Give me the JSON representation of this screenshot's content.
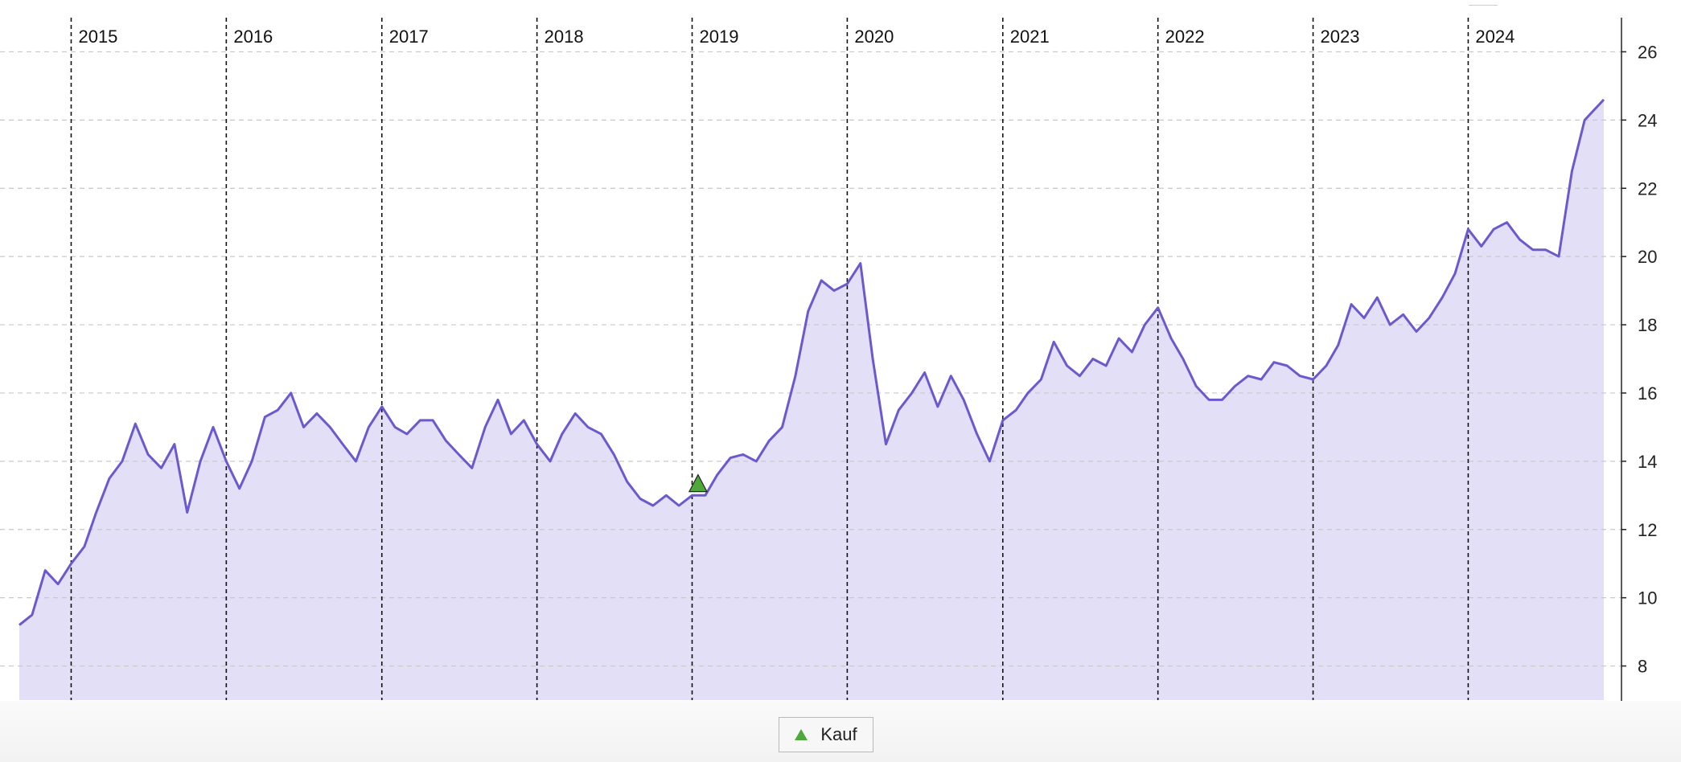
{
  "chart_data": {
    "type": "area",
    "title": "",
    "xlabel": "",
    "ylabel": "",
    "x_range": [
      "2014-09-01",
      "2024-11-15"
    ],
    "ylim": [
      7,
      27
    ],
    "y_ticks": [
      8,
      10,
      12,
      14,
      16,
      18,
      20,
      22,
      24,
      26
    ],
    "y_axis_side": "right",
    "grid": {
      "horizontal": "dashed",
      "vertical_year_markers": "dashed"
    },
    "year_markers": [
      {
        "date": "2015-01-01",
        "label": "2015"
      },
      {
        "date": "2016-01-01",
        "label": "2016"
      },
      {
        "date": "2017-01-01",
        "label": "2017"
      },
      {
        "date": "2018-01-01",
        "label": "2018"
      },
      {
        "date": "2019-01-01",
        "label": "2019"
      },
      {
        "date": "2020-01-01",
        "label": "2020"
      },
      {
        "date": "2021-01-01",
        "label": "2021"
      },
      {
        "date": "2022-01-01",
        "label": "2022"
      },
      {
        "date": "2023-01-01",
        "label": "2023"
      },
      {
        "date": "2024-01-01",
        "label": "2024"
      }
    ],
    "line_color": "#6a5acd",
    "fill_color": "#e2dff6",
    "series": [
      {
        "x": [
          "2014-09-01",
          "2014-10-01",
          "2014-11-01",
          "2014-12-01",
          "2015-01-01",
          "2015-02-01",
          "2015-03-01",
          "2015-04-01",
          "2015-05-01",
          "2015-06-01",
          "2015-07-01",
          "2015-08-01",
          "2015-09-01",
          "2015-10-01",
          "2015-11-01",
          "2015-12-01",
          "2016-01-01",
          "2016-02-01",
          "2016-03-01",
          "2016-04-01",
          "2016-05-01",
          "2016-06-01",
          "2016-07-01",
          "2016-08-01",
          "2016-09-01",
          "2016-10-01",
          "2016-11-01",
          "2016-12-01",
          "2017-01-01",
          "2017-02-01",
          "2017-03-01",
          "2017-04-01",
          "2017-05-01",
          "2017-06-01",
          "2017-07-01",
          "2017-08-01",
          "2017-09-01",
          "2017-10-01",
          "2017-11-01",
          "2017-12-01",
          "2018-01-01",
          "2018-02-01",
          "2018-03-01",
          "2018-04-01",
          "2018-05-01",
          "2018-06-01",
          "2018-07-01",
          "2018-08-01",
          "2018-09-01",
          "2018-10-01",
          "2018-11-01",
          "2018-12-01",
          "2019-01-01",
          "2019-02-01",
          "2019-03-01",
          "2019-04-01",
          "2019-05-01",
          "2019-06-01",
          "2019-07-01",
          "2019-08-01",
          "2019-09-01",
          "2019-10-01",
          "2019-11-01",
          "2019-12-01",
          "2020-01-01",
          "2020-02-01",
          "2020-03-01",
          "2020-04-01",
          "2020-05-01",
          "2020-06-01",
          "2020-07-01",
          "2020-08-01",
          "2020-09-01",
          "2020-10-01",
          "2020-11-01",
          "2020-12-01",
          "2021-01-01",
          "2021-02-01",
          "2021-03-01",
          "2021-04-01",
          "2021-05-01",
          "2021-06-01",
          "2021-07-01",
          "2021-08-01",
          "2021-09-01",
          "2021-10-01",
          "2021-11-01",
          "2021-12-01",
          "2022-01-01",
          "2022-02-01",
          "2022-03-01",
          "2022-04-01",
          "2022-05-01",
          "2022-06-01",
          "2022-07-01",
          "2022-08-01",
          "2022-09-01",
          "2022-10-01",
          "2022-11-01",
          "2022-12-01",
          "2023-01-01",
          "2023-02-01",
          "2023-03-01",
          "2023-04-01",
          "2023-05-01",
          "2023-06-01",
          "2023-07-01",
          "2023-08-01",
          "2023-09-01",
          "2023-10-01",
          "2023-11-01",
          "2023-12-01",
          "2024-01-01",
          "2024-02-01",
          "2024-03-01",
          "2024-04-01",
          "2024-05-01",
          "2024-06-01",
          "2024-07-01",
          "2024-08-01",
          "2024-09-01",
          "2024-10-01",
          "2024-11-15"
        ],
        "y": [
          9.2,
          9.5,
          10.8,
          10.4,
          11.0,
          11.5,
          12.5,
          13.5,
          14.0,
          15.1,
          14.2,
          13.8,
          14.5,
          12.5,
          14.0,
          15.0,
          14.0,
          13.2,
          14.0,
          15.3,
          15.5,
          16.0,
          15.0,
          15.4,
          15.0,
          14.5,
          14.0,
          15.0,
          15.6,
          15.0,
          14.8,
          15.2,
          15.2,
          14.6,
          14.2,
          13.8,
          15.0,
          15.8,
          14.8,
          15.2,
          14.5,
          14.0,
          14.8,
          15.4,
          15.0,
          14.8,
          14.2,
          13.4,
          12.9,
          12.7,
          13.0,
          12.7,
          13.0,
          13.0,
          13.6,
          14.1,
          14.2,
          14.0,
          14.6,
          15.0,
          16.5,
          18.4,
          19.3,
          19.0,
          19.2,
          19.8,
          17.0,
          14.5,
          15.5,
          16.0,
          16.6,
          15.6,
          16.5,
          15.8,
          14.8,
          14.0,
          15.2,
          15.5,
          16.0,
          16.4,
          17.5,
          16.8,
          16.5,
          17.0,
          16.8,
          17.6,
          17.2,
          18.0,
          18.5,
          17.6,
          17.0,
          16.2,
          15.8,
          15.8,
          16.2,
          16.5,
          16.4,
          16.9,
          16.8,
          16.5,
          16.4,
          16.8,
          17.4,
          18.6,
          18.2,
          18.8,
          18.0,
          18.3,
          17.8,
          18.2,
          18.8,
          19.5,
          20.8,
          20.3,
          20.8,
          21.0,
          20.5,
          20.2,
          20.2,
          20.0,
          22.5,
          24.0,
          24.6
        ]
      }
    ],
    "markers": [
      {
        "label": "Kauf",
        "date": "2019-01-15",
        "value": 13.3,
        "symbol": "triangle-up",
        "color": "#4ea83a"
      }
    ],
    "legend": {
      "placement": "bottom-center",
      "entries": [
        {
          "label": "Kauf",
          "symbol": "triangle-up",
          "color": "#4ea83a"
        }
      ]
    }
  }
}
